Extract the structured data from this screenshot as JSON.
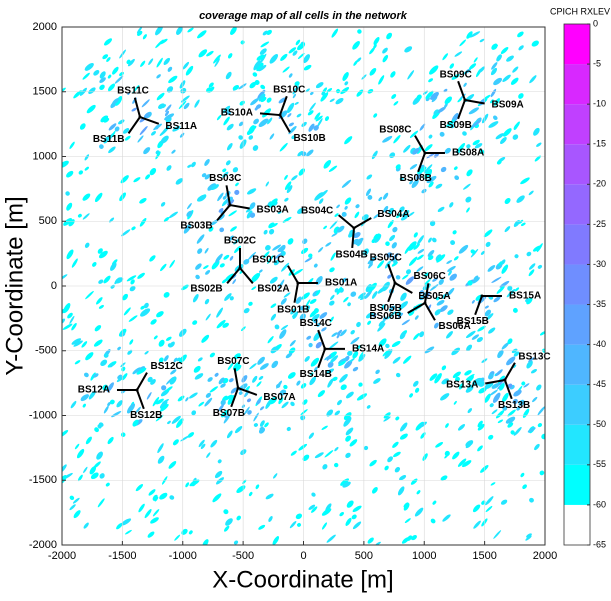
{
  "chart_data": {
    "type": "coverage-map",
    "title": "coverage map of all cells in the network",
    "x_label": "X-Coordinate [m]",
    "y_label": "Y-Coordinate [m]",
    "xlim": [
      -2000,
      2000
    ],
    "ylim": [
      -2000,
      2000
    ],
    "xticks": [
      -2000,
      -1500,
      -1000,
      -500,
      0,
      500,
      1000,
      1500,
      2000
    ],
    "yticks": [
      -2000,
      -1500,
      -1000,
      -500,
      0,
      500,
      1000,
      1500,
      2000
    ],
    "grid": true,
    "colorbar": {
      "label": "CPICH RXLEV",
      "lim": [
        -65,
        0
      ],
      "ticks": [
        0,
        -5,
        -10,
        -15,
        -20,
        -25,
        -30,
        -35,
        -40,
        -45,
        -50,
        -55,
        -60,
        -65
      ],
      "colors": [
        "#ffffff",
        "#00ffff",
        "#22e6ff",
        "#3ccdff",
        "#4fb6ff",
        "#5fa2ff",
        "#6f8eff",
        "#807aff",
        "#9468ff",
        "#a856ff",
        "#c040ff",
        "#d828ff",
        "#ff00ff"
      ]
    },
    "sites": [
      {
        "x": -1354,
        "y": 1305,
        "cells": [
          {
            "name": "BS11A",
            "azimuth": 110
          },
          {
            "name": "BS11B",
            "azimuth": 215
          },
          {
            "name": "BS11C",
            "azimuth": 345
          }
        ]
      },
      {
        "x": -195,
        "y": 1320,
        "cells": [
          {
            "name": "BS10A",
            "azimuth": 275
          },
          {
            "name": "BS10B",
            "azimuth": 150
          },
          {
            "name": "BS10C",
            "azimuth": 20
          }
        ]
      },
      {
        "x": 1337,
        "y": 1436,
        "cells": [
          {
            "name": "BS09A",
            "azimuth": 100
          },
          {
            "name": "BS09B",
            "azimuth": 200
          },
          {
            "name": "BS09C",
            "azimuth": 340
          }
        ]
      },
      {
        "x": 1006,
        "y": 1027,
        "cells": [
          {
            "name": "BS08A",
            "azimuth": 90
          },
          {
            "name": "BS08B",
            "azimuth": 200
          },
          {
            "name": "BS08C",
            "azimuth": 330
          }
        ]
      },
      {
        "x": -609,
        "y": 625,
        "cells": [
          {
            "name": "BS03A",
            "azimuth": 100
          },
          {
            "name": "BS03B",
            "azimuth": 220
          },
          {
            "name": "BS03C",
            "azimuth": 350
          }
        ]
      },
      {
        "x": 418,
        "y": 448,
        "cells": [
          {
            "name": "BS04A",
            "azimuth": 60
          },
          {
            "name": "BS04B",
            "azimuth": 185
          },
          {
            "name": "BS04C",
            "azimuth": 310
          }
        ]
      },
      {
        "x": -526,
        "y": 139,
        "cells": [
          {
            "name": "BS02A",
            "azimuth": 140
          },
          {
            "name": "BS02B",
            "azimuth": 220
          },
          {
            "name": "BS02C",
            "azimuth": 0
          }
        ]
      },
      {
        "x": -46,
        "y": 23,
        "cells": [
          {
            "name": "BS01A",
            "azimuth": 90
          },
          {
            "name": "BS01B",
            "azimuth": 190
          },
          {
            "name": "BS01C",
            "azimuth": 330
          }
        ]
      },
      {
        "x": 758,
        "y": 23,
        "cells": [
          {
            "name": "BS05A",
            "azimuth": 120
          },
          {
            "name": "BS05B",
            "azimuth": 200
          },
          {
            "name": "BS05C",
            "azimuth": 340
          }
        ]
      },
      {
        "x": 1006,
        "y": -131,
        "cells": [
          {
            "name": "BS06A",
            "azimuth": 150
          },
          {
            "name": "BS06B",
            "azimuth": 240
          },
          {
            "name": "BS06C",
            "azimuth": 10
          }
        ]
      },
      {
        "x": 1478,
        "y": -77,
        "cells": [
          {
            "name": "BS15A",
            "azimuth": 90
          },
          {
            "name": "BS15B",
            "azimuth": 200
          }
        ]
      },
      {
        "x": 178,
        "y": -486,
        "cells": [
          {
            "name": "BS14A",
            "azimuth": 90
          },
          {
            "name": "BS14B",
            "azimuth": 200
          },
          {
            "name": "BS14C",
            "azimuth": 340
          }
        ]
      },
      {
        "x": 1668,
        "y": -726,
        "cells": [
          {
            "name": "BS13A",
            "azimuth": 260
          },
          {
            "name": "BS13B",
            "azimuth": 160
          },
          {
            "name": "BS13C",
            "azimuth": 30
          }
        ]
      },
      {
        "x": -1379,
        "y": -803,
        "cells": [
          {
            "name": "BS12A",
            "azimuth": 270
          },
          {
            "name": "BS12B",
            "azimuth": 160
          },
          {
            "name": "BS12C",
            "azimuth": 30
          }
        ]
      },
      {
        "x": -542,
        "y": -788,
        "cells": [
          {
            "name": "BS07A",
            "azimuth": 110
          },
          {
            "name": "BS07B",
            "azimuth": 200
          },
          {
            "name": "BS07C",
            "azimuth": 350
          }
        ]
      }
    ]
  }
}
